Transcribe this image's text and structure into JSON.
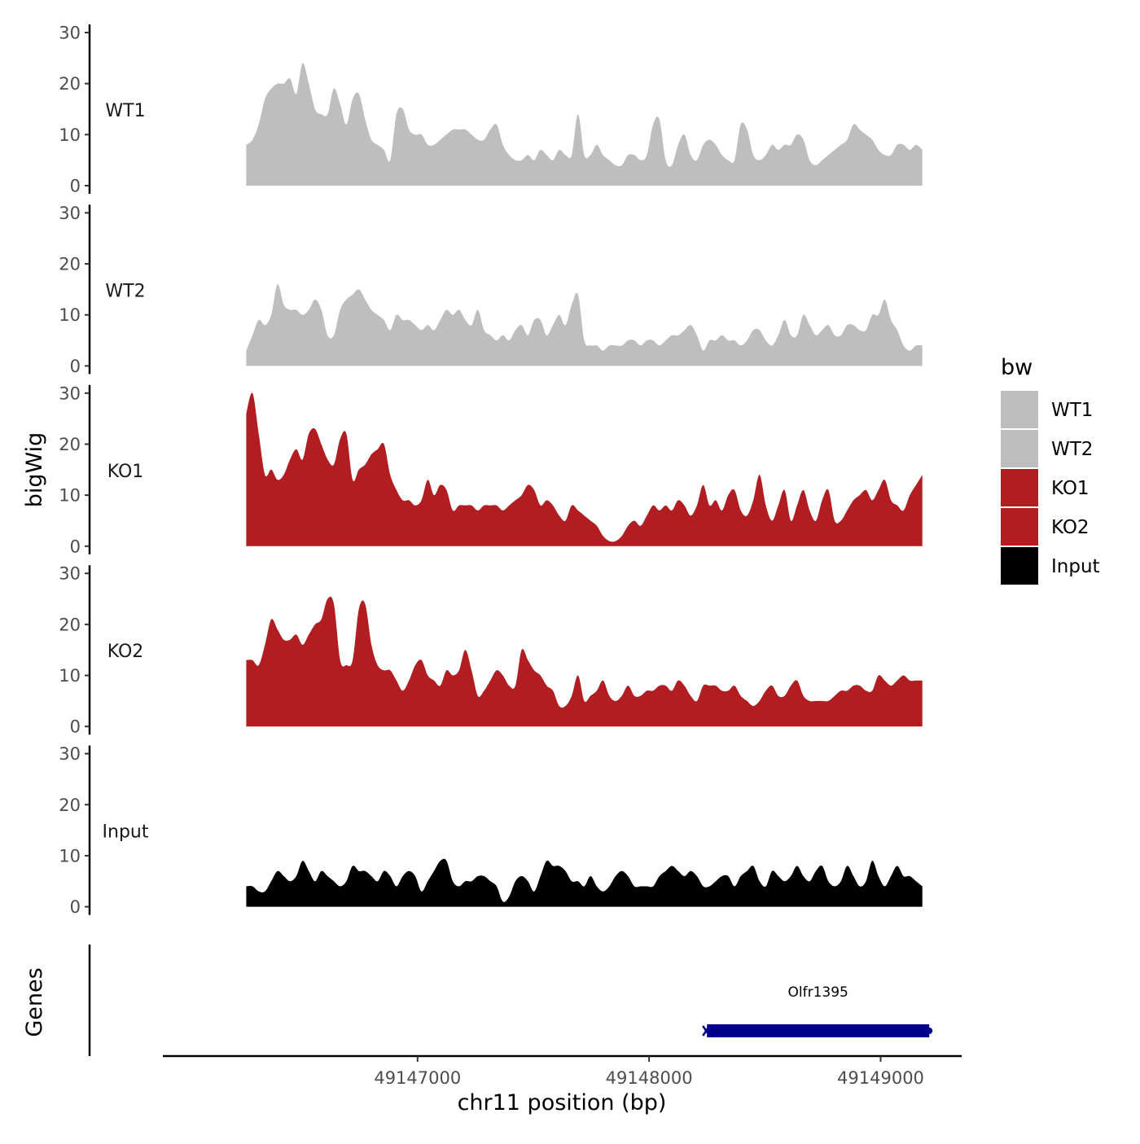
{
  "chart_data": {
    "type": "area",
    "title": "",
    "xlabel": "chr11 position (bp)",
    "ylabel": "bigWig",
    "genes_label": "Genes",
    "xlim": [
      49145900,
      49149350
    ],
    "ylim": [
      0,
      30
    ],
    "x_ticks": [
      49147000,
      49148000,
      49149000
    ],
    "x_tick_labels": [
      "49147000",
      "49148000",
      "49149000"
    ],
    "y_ticks": [
      0,
      10,
      20,
      30
    ],
    "y_tick_labels": [
      "0",
      "10",
      "20",
      "30"
    ],
    "x_start": 49146260,
    "x_end": 49149180,
    "tracks": [
      {
        "name": "WT1",
        "color": "#bebebe",
        "x_end": 49149180,
        "values": [
          8,
          9,
          12,
          17,
          19,
          20,
          20,
          21,
          18,
          24,
          20,
          15,
          14,
          14,
          19,
          16,
          12,
          17,
          18,
          13,
          9,
          8,
          7,
          5,
          14,
          15,
          11,
          10,
          10,
          8,
          8,
          9,
          10,
          11,
          11,
          11,
          10,
          9,
          9,
          11,
          12,
          8,
          6,
          5,
          5,
          6,
          5,
          7,
          6,
          5,
          7,
          6,
          6,
          14,
          6,
          6,
          8,
          6,
          5,
          4,
          4,
          6,
          6,
          5,
          6,
          12,
          13,
          5,
          4,
          8,
          10,
          6,
          5,
          8,
          9,
          8,
          6,
          5,
          5,
          12,
          11,
          6,
          5,
          6,
          8,
          7,
          8,
          8,
          10,
          9,
          5,
          4,
          5,
          6,
          7,
          8,
          9,
          12,
          11,
          10,
          9,
          7,
          6,
          6,
          8,
          8,
          7,
          8,
          7
        ]
      },
      {
        "name": "WT2",
        "color": "#bebebe",
        "x_end": 49149180,
        "values": [
          3,
          6,
          9,
          8,
          10,
          16,
          12,
          11,
          11,
          10,
          11,
          13,
          11,
          6,
          6,
          11,
          13,
          14,
          15,
          13,
          11,
          10,
          9,
          7,
          10,
          9,
          9,
          8,
          7,
          8,
          7,
          9,
          11,
          10,
          11,
          9,
          8,
          11,
          7,
          6,
          5,
          6,
          5,
          7,
          8,
          6,
          9,
          9,
          6,
          8,
          10,
          8,
          12,
          14,
          5,
          4,
          4,
          3,
          4,
          4,
          4,
          5,
          5,
          4,
          5,
          5,
          4,
          5,
          6,
          6,
          7,
          8,
          6,
          3,
          5,
          5,
          6,
          5,
          5,
          4,
          5,
          7,
          7,
          5,
          4,
          6,
          9,
          6,
          6,
          10,
          8,
          6,
          7,
          8,
          6,
          6,
          8,
          8,
          7,
          7,
          10,
          10,
          13,
          9,
          7,
          4,
          3,
          4,
          4
        ]
      },
      {
        "name": "KO1",
        "color": "#b21d21",
        "x_end": 49149180,
        "values": [
          26,
          30,
          22,
          14,
          15,
          13,
          14,
          17,
          19,
          17,
          22,
          23,
          20,
          17,
          16,
          21,
          22,
          13,
          15,
          16,
          18,
          19,
          20,
          14,
          11,
          9,
          9,
          8,
          9,
          13,
          10,
          12,
          11,
          7,
          8,
          8,
          8,
          7,
          8,
          8,
          8,
          7,
          8,
          9,
          10,
          12,
          11,
          8,
          9,
          8,
          6,
          5,
          8,
          7,
          6,
          5,
          4,
          2,
          1,
          1,
          2,
          4,
          5,
          4,
          6,
          8,
          7,
          8,
          7,
          9,
          8,
          6,
          8,
          12,
          8,
          9,
          7,
          10,
          11,
          7,
          6,
          9,
          14,
          8,
          5,
          8,
          11,
          5,
          8,
          11,
          7,
          5,
          9,
          11,
          5,
          5,
          7,
          9,
          10,
          11,
          9,
          11,
          13,
          9,
          8,
          7,
          10,
          12,
          14
        ]
      },
      {
        "name": "KO2",
        "color": "#b21d21",
        "x_end": 49149180,
        "values": [
          13,
          13,
          12,
          16,
          21,
          19,
          17,
          17,
          18,
          16,
          18,
          20,
          21,
          25,
          24,
          13,
          12,
          13,
          23,
          24,
          16,
          12,
          11,
          11,
          9,
          7,
          9,
          12,
          13,
          10,
          9,
          8,
          11,
          10,
          11,
          15,
          11,
          6,
          7,
          9,
          11,
          10,
          8,
          8,
          15,
          13,
          11,
          10,
          8,
          7,
          4,
          4,
          6,
          10,
          5,
          6,
          7,
          9,
          6,
          5,
          6,
          8,
          6,
          6,
          7,
          7,
          8,
          8,
          7,
          9,
          8,
          6,
          5,
          8,
          8,
          8,
          7,
          7,
          8,
          6,
          5,
          4,
          5,
          7,
          8,
          6,
          6,
          8,
          9,
          6,
          5,
          5,
          5,
          5,
          6,
          7,
          7,
          8,
          8,
          7,
          7,
          10,
          9,
          8,
          9,
          10,
          9,
          9,
          9
        ]
      },
      {
        "name": "Input",
        "color": "#000000",
        "x_end": 49149180,
        "values": [
          4,
          4,
          3,
          3,
          5,
          7,
          6,
          5,
          6,
          9,
          7,
          5,
          7,
          6,
          5,
          4,
          5,
          8,
          7,
          7,
          6,
          5,
          7,
          6,
          4,
          6,
          7,
          6,
          3,
          5,
          7,
          9,
          9,
          5,
          4,
          5,
          5,
          6,
          6,
          5,
          4,
          1,
          2,
          5,
          6,
          5,
          3,
          6,
          9,
          8,
          8,
          7,
          5,
          5,
          4,
          6,
          4,
          3,
          4,
          6,
          7,
          6,
          4,
          4,
          4,
          4,
          6,
          7,
          8,
          7,
          6,
          7,
          6,
          4,
          4,
          5,
          6,
          6,
          4,
          6,
          7,
          8,
          5,
          4,
          7,
          6,
          5,
          6,
          8,
          6,
          5,
          7,
          8,
          5,
          4,
          5,
          8,
          6,
          4,
          5,
          9,
          6,
          4,
          6,
          8,
          6,
          6,
          5,
          4
        ]
      }
    ],
    "legend": {
      "title": "bw",
      "position": "right",
      "entries": [
        {
          "label": "WT1",
          "color": "#bebebe"
        },
        {
          "label": "WT2",
          "color": "#bebebe"
        },
        {
          "label": "KO1",
          "color": "#b21d21"
        },
        {
          "label": "KO2",
          "color": "#b21d21"
        },
        {
          "label": "Input",
          "color": "#000000"
        }
      ]
    },
    "genes": [
      {
        "name": "Olfr1395",
        "start": 49148250,
        "end": 49149210,
        "strand": "-",
        "color": "#00008b"
      }
    ]
  }
}
